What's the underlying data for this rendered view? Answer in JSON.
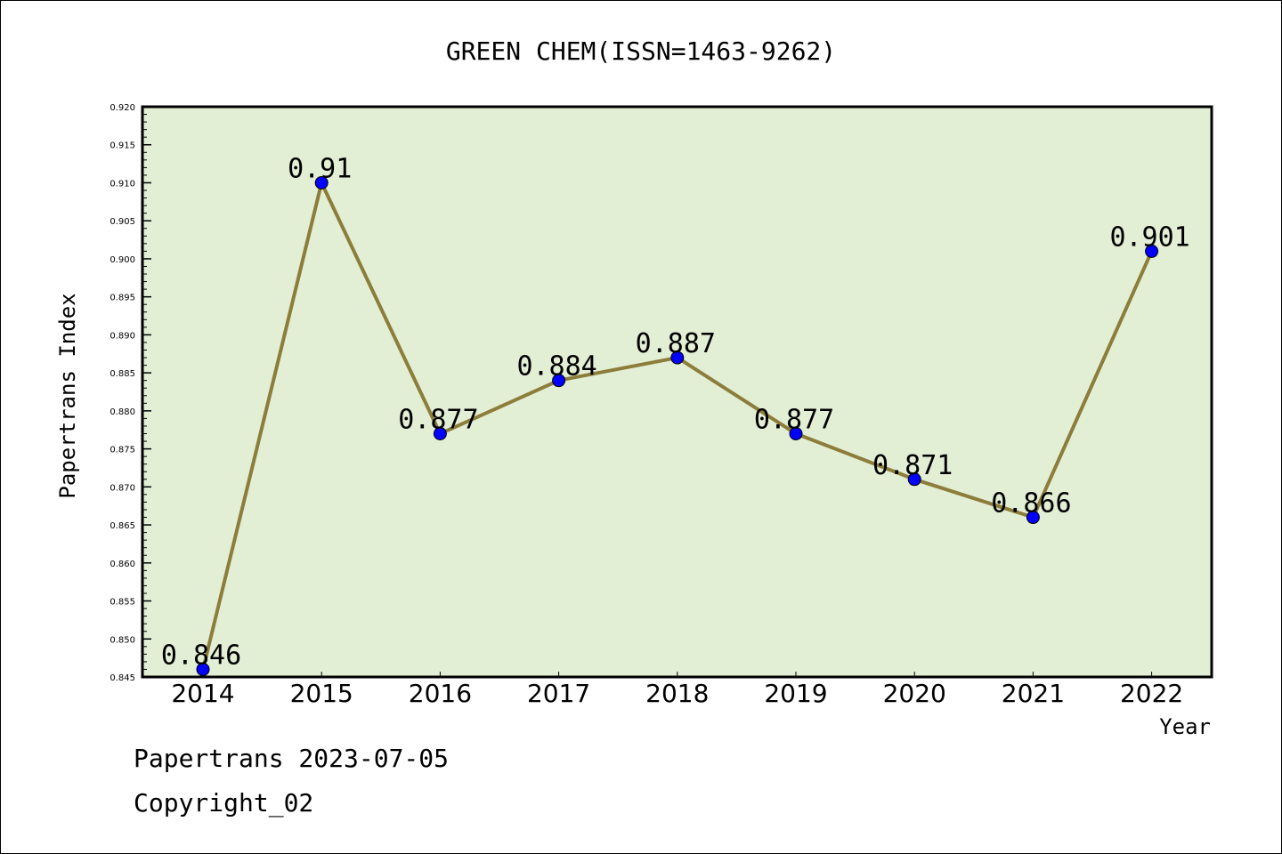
{
  "chart_data": {
    "type": "line",
    "title": "GREEN CHEM(ISSN=1463-9262)",
    "xlabel": "Year",
    "ylabel": "Papertrans Index",
    "categories": [
      "2014",
      "2015",
      "2016",
      "2017",
      "2018",
      "2019",
      "2020",
      "2021",
      "2022"
    ],
    "values": [
      0.846,
      0.91,
      0.877,
      0.884,
      0.887,
      0.877,
      0.871,
      0.866,
      0.901
    ],
    "data_labels": [
      "0.846",
      "0.91",
      "0.877",
      "0.884",
      "0.887",
      "0.877",
      "0.871",
      "0.866",
      "0.901"
    ],
    "ylim": [
      0.845,
      0.92
    ],
    "yticks": [
      "0.845",
      "0.850",
      "0.855",
      "0.860",
      "0.865",
      "0.870",
      "0.875",
      "0.880",
      "0.885",
      "0.890",
      "0.895",
      "0.900",
      "0.905",
      "0.910",
      "0.915",
      "0.920"
    ],
    "grid": false,
    "colors": {
      "plot_background": "#e2efd5",
      "line": "#8c7d3a",
      "marker": "#0000ff"
    }
  },
  "footer": {
    "source": "Papertrans 2023-07-05",
    "copyright": "Copyright_02"
  }
}
